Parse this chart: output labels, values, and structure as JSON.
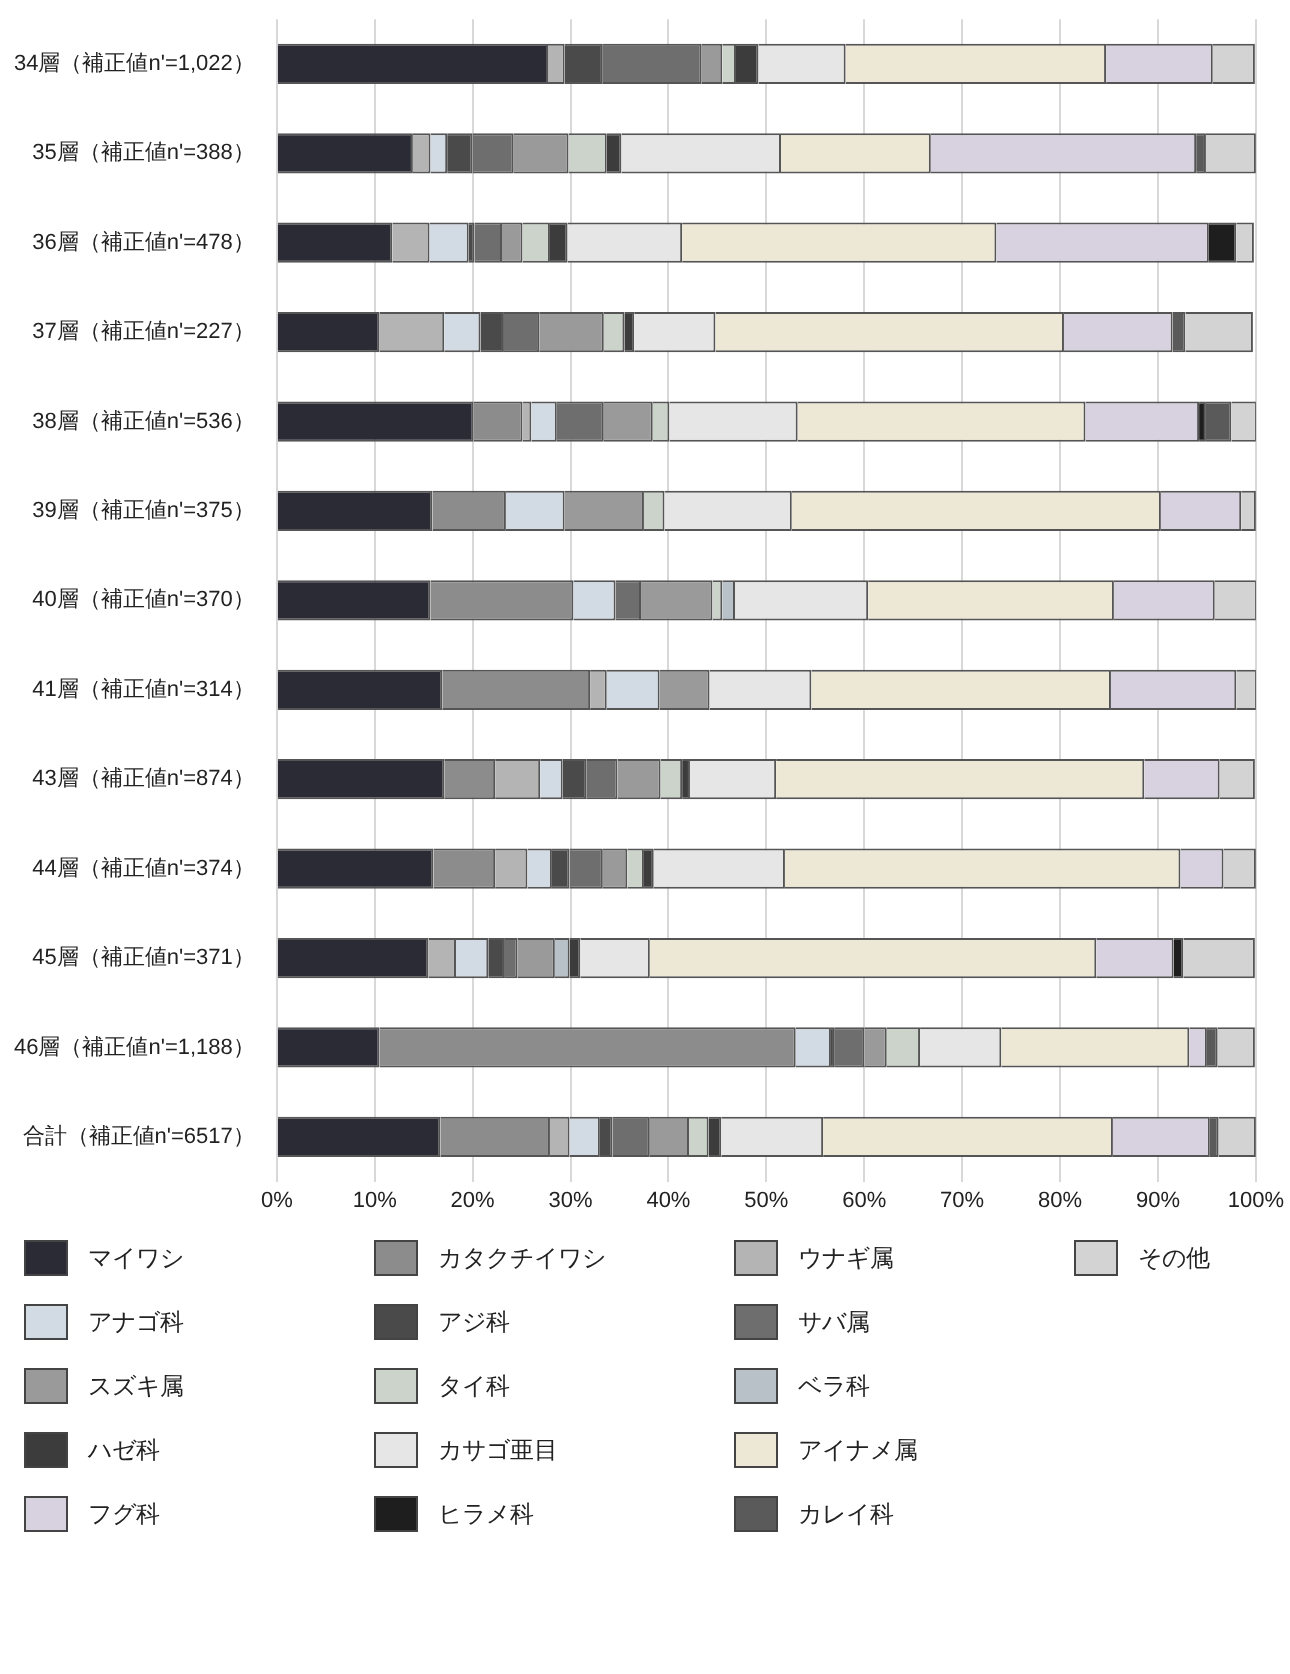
{
  "chart_data": {
    "type": "bar",
    "orientation": "horizontal",
    "stacked": true,
    "categories": [
      "34層（補正値n'=1,022）",
      "35層（補正値n'=388）",
      "36層（補正値n'=478）",
      "37層（補正値n'=227）",
      "38層（補正値n'=536）",
      "39層（補正値n'=375）",
      "40層（補正値n'=370）",
      "41層（補正値n'=314）",
      "43層（補正値n'=874）",
      "44層（補正値n'=374）",
      "45層（補正値n'=371）",
      "46層（補正値n'=1,188）",
      "合計（補正値n'=6517）"
    ],
    "series": [
      {
        "name": "マイワシ",
        "color": "#2b2b35",
        "values": [
          27.7,
          13.9,
          11.8,
          10.5,
          20.1,
          15.9,
          15.7,
          16.9,
          17.1,
          16.0,
          15.5,
          10.5,
          16.7
        ]
      },
      {
        "name": "カタクチイワシ",
        "color": "#8c8c8c",
        "values": [
          0,
          0,
          0,
          0,
          5.0,
          7.5,
          14.6,
          15.1,
          5.2,
          6.3,
          0,
          42.5,
          11.2
        ]
      },
      {
        "name": "ウナギ属",
        "color": "#b4b4b4",
        "values": [
          1.7,
          1.8,
          3.8,
          6.6,
          0.9,
          0,
          0,
          1.7,
          4.6,
          3.3,
          2.8,
          0,
          2.0
        ]
      },
      {
        "name": "アナゴ科",
        "color": "#d2dae4",
        "values": [
          0,
          1.7,
          4.0,
          3.7,
          2.6,
          6.0,
          4.3,
          5.4,
          2.3,
          2.5,
          3.3,
          3.6,
          3.1
        ]
      },
      {
        "name": "アジ科",
        "color": "#4a4a4a",
        "values": [
          3.9,
          2.6,
          0.6,
          2.4,
          0,
          0,
          0,
          0,
          2.4,
          1.8,
          1.7,
          0.4,
          1.3
        ]
      },
      {
        "name": "サバ属",
        "color": "#6e6e6e",
        "values": [
          10.1,
          4.2,
          2.8,
          3.6,
          4.8,
          0,
          2.6,
          0,
          3.2,
          3.4,
          1.3,
          3.0,
          3.8
        ]
      },
      {
        "name": "スズキ属",
        "color": "#9a9a9a",
        "values": [
          2.1,
          5.6,
          2.1,
          6.6,
          5.0,
          8.1,
          7.3,
          5.1,
          4.4,
          2.5,
          3.8,
          2.3,
          4.0
        ]
      },
      {
        "name": "タイ科",
        "color": "#cbd3cb",
        "values": [
          1.4,
          3.9,
          2.8,
          2.1,
          1.7,
          2.1,
          1.0,
          0,
          2.2,
          1.7,
          0,
          3.4,
          2.0
        ]
      },
      {
        "name": "ベラ科",
        "color": "#b8c0c8",
        "values": [
          0,
          0,
          0,
          0,
          0,
          0,
          1.3,
          0,
          0,
          0,
          1.5,
          0,
          0
        ]
      },
      {
        "name": "ハゼ科",
        "color": "#3c3c3c",
        "values": [
          2.3,
          1.5,
          1.8,
          1.0,
          0,
          0,
          0,
          0,
          0.8,
          1.0,
          1.1,
          0,
          1.3
        ]
      },
      {
        "name": "カサゴ亜目",
        "color": "#e6e6e6",
        "values": [
          8.9,
          16.3,
          11.7,
          8.3,
          13.1,
          13.0,
          13.6,
          10.4,
          8.8,
          13.4,
          7.1,
          8.3,
          10.4
        ]
      },
      {
        "name": "アイナメ属",
        "color": "#ede8d6",
        "values": [
          26.6,
          15.3,
          32.1,
          35.6,
          29.4,
          37.7,
          25.1,
          30.6,
          37.6,
          40.4,
          45.6,
          19.2,
          29.6
        ]
      },
      {
        "name": "フグ科",
        "color": "#d8d2e0",
        "values": [
          10.9,
          27.1,
          21.7,
          11.1,
          11.6,
          8.2,
          10.3,
          12.8,
          7.7,
          4.4,
          7.9,
          1.8,
          9.9
        ]
      },
      {
        "name": "ヒラメ科",
        "color": "#1e1e1e",
        "values": [
          0,
          0,
          2.8,
          0,
          0.7,
          0,
          0,
          0,
          0,
          0,
          1.0,
          0,
          0
        ]
      },
      {
        "name": "カレイ科",
        "color": "#5a5a5a",
        "values": [
          0,
          1.0,
          0,
          1.3,
          2.6,
          0,
          0,
          0,
          0,
          0,
          0,
          1.1,
          0.9
        ]
      },
      {
        "name": "その他",
        "color": "#d3d3d3",
        "values": [
          4.3,
          5.1,
          1.8,
          6.9,
          2.6,
          1.5,
          4.3,
          2.1,
          3.6,
          3.3,
          7.3,
          3.8,
          3.8
        ]
      }
    ],
    "xlim": [
      0,
      100
    ],
    "xticks": [
      {
        "value": 0,
        "label": "0%"
      },
      {
        "value": 10,
        "label": "10%"
      },
      {
        "value": 20,
        "label": "20%"
      },
      {
        "value": 30,
        "label": "30%"
      },
      {
        "value": 40,
        "label": "40%"
      },
      {
        "value": 50,
        "label": "50%"
      },
      {
        "value": 60,
        "label": "60%"
      },
      {
        "value": 70,
        "label": "70%"
      },
      {
        "value": 80,
        "label": "80%"
      },
      {
        "value": 90,
        "label": "90%"
      },
      {
        "value": 100,
        "label": "100%"
      }
    ],
    "grid": "x",
    "legend": "bottom"
  }
}
